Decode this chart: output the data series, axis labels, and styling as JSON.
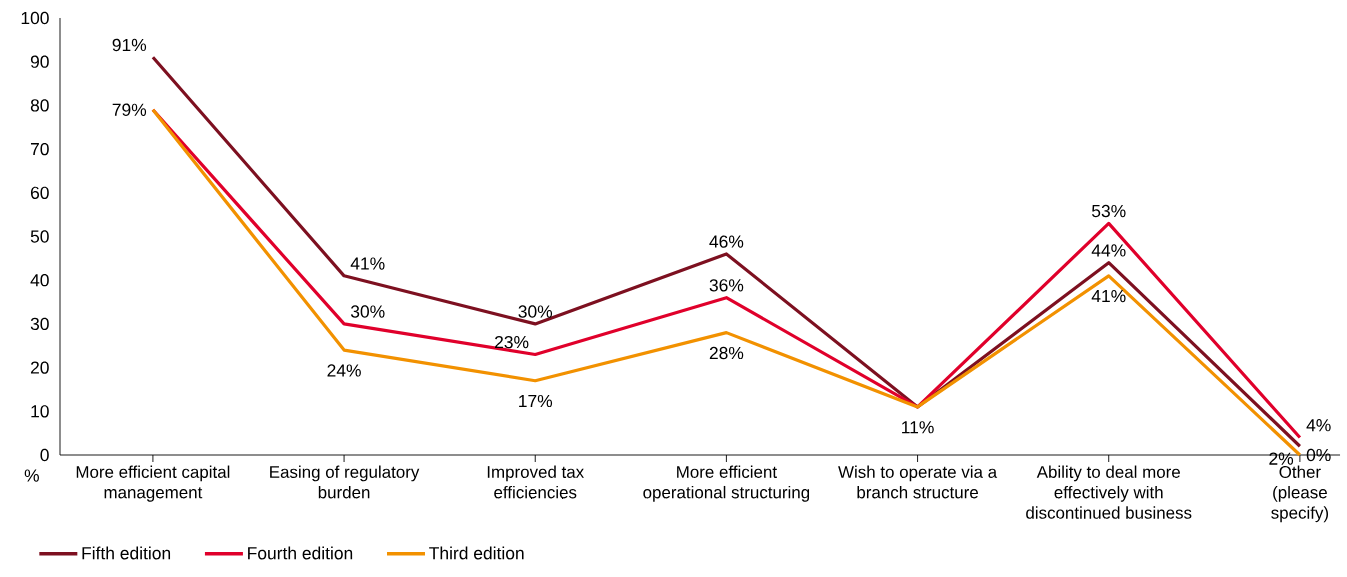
{
  "chart_data": {
    "type": "line",
    "ylabel": "%",
    "categories": [
      "More efficient capital management",
      "Easing of regulatory burden",
      "Improved tax efficiencies",
      "More efficient operational structuring",
      "Wish to operate via a branch structure",
      "Ability to deal more effectively with discontinued business",
      "Other (please specify)"
    ],
    "series": [
      {
        "name": "Fifth edition",
        "color": "#7d1020",
        "values": [
          91,
          41,
          30,
          46,
          11,
          44,
          2
        ],
        "value_labels": [
          "91%",
          "41%",
          "30%",
          "46%",
          null,
          "44%",
          "2%"
        ]
      },
      {
        "name": "Fourth edition",
        "color": "#e0002b",
        "values": [
          79,
          30,
          23,
          36,
          11,
          53,
          4
        ],
        "value_labels": [
          "79%",
          "30%",
          "23%",
          "36%",
          null,
          "53%",
          "4%"
        ]
      },
      {
        "name": "Third edition",
        "color": "#f29100",
        "values": [
          79,
          24,
          17,
          28,
          11,
          41,
          0
        ],
        "value_labels": [
          null,
          "24%",
          "17%",
          "28%",
          "11%",
          "41%",
          "0%"
        ]
      }
    ],
    "ylim": [
      0,
      100
    ],
    "yticks": [
      0,
      10,
      20,
      30,
      40,
      50,
      60,
      70,
      80,
      90,
      100
    ],
    "grid": false,
    "legend": "bottom left",
    "marker": "none",
    "line_style": "solid"
  }
}
